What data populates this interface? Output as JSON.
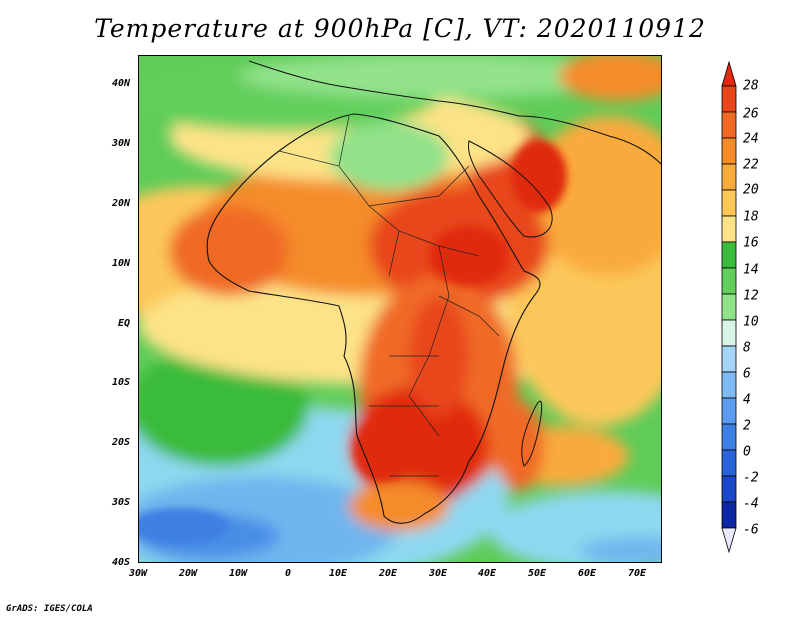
{
  "title": "Temperature at 900hPa [C], VT: 2020110912",
  "footer": "GrADS: IGES/COLA",
  "y_axis_labels": [
    "40N",
    "30N",
    "20N",
    "10N",
    "EQ",
    "10S",
    "20S",
    "30S",
    "40S"
  ],
  "x_axis_labels": [
    "30W",
    "20W",
    "10W",
    "0",
    "10E",
    "20E",
    "30E",
    "40E",
    "50E",
    "60E",
    "70E"
  ],
  "lat_range": [
    -40,
    45
  ],
  "lon_range": [
    -30,
    75
  ],
  "colorbar": {
    "labels": [
      "28",
      "26",
      "24",
      "22",
      "20",
      "18",
      "16",
      "14",
      "12",
      "10",
      "8",
      "6",
      "4",
      "2",
      "0",
      "-2",
      "-4",
      "-6"
    ],
    "colors_top_to_bottom": [
      "#e02a10",
      "#e8461a",
      "#f06a25",
      "#f58c2c",
      "#f9aa3c",
      "#fcc75a",
      "#fde387",
      "#3bbb3b",
      "#62cf5b",
      "#92e28a",
      "#d8f5e8",
      "#a6d4f7",
      "#7fbaf4",
      "#5b9cee",
      "#3d7fe3",
      "#2963d8",
      "#1a48c6",
      "#0e27a3",
      "#070f68"
    ]
  }
}
